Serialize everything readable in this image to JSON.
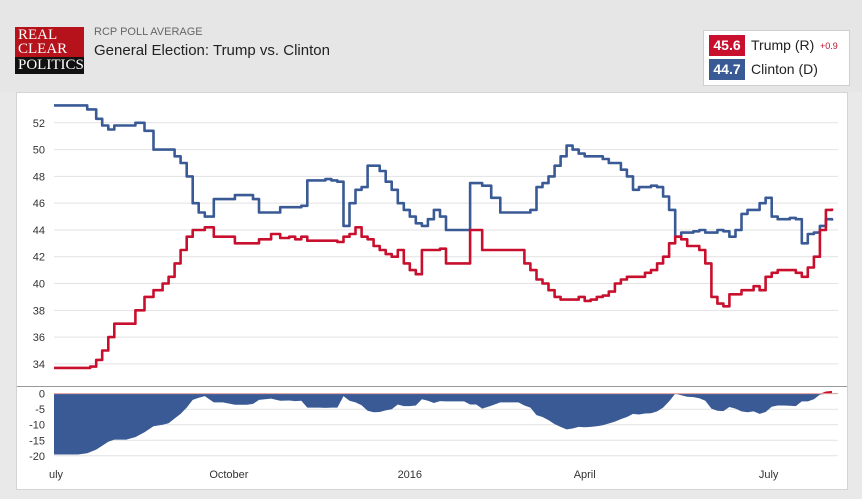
{
  "header": {
    "logo": {
      "line1": "REAL",
      "line2": "CLEAR",
      "line3": "POLITICS"
    },
    "kicker": "RCP POLL AVERAGE",
    "title": "General Election: Trump vs. Clinton"
  },
  "legend": {
    "trump": {
      "value": "45.6",
      "name": "Trump (R)",
      "change": "+0.9",
      "color": "#c8102e"
    },
    "clinton": {
      "value": "44.7",
      "name": "Clinton (D)",
      "color": "#3a5a96"
    }
  },
  "chart_data": {
    "type": "line",
    "ylim": [
      32.5,
      54
    ],
    "yticks": [
      34,
      36,
      38,
      40,
      42,
      44,
      46,
      48,
      50,
      52
    ],
    "spread_ylim": [
      -22,
      1.5
    ],
    "spread_yticks": [
      0,
      -5,
      -10,
      -15,
      -20
    ],
    "xlabels": [
      {
        "label": "uly",
        "x": 0
      },
      {
        "label": "October",
        "x": 58
      },
      {
        "label": "2016",
        "x": 118
      },
      {
        "label": "April",
        "x": 176
      },
      {
        "label": "July",
        "x": 237
      }
    ],
    "xrange": [
      0,
      260
    ],
    "series": [
      {
        "name": "Clinton (D)",
        "color": "#3a5a96",
        "x": [
          0,
          4,
          8,
          11,
          14,
          16,
          18,
          20,
          22,
          24,
          27,
          30,
          33,
          36,
          38,
          40,
          42,
          44,
          46,
          48,
          50,
          53,
          56,
          60,
          64,
          66,
          68,
          72,
          75,
          78,
          80,
          82,
          84,
          86,
          88,
          90,
          92,
          94,
          96,
          98,
          100,
          102,
          104,
          106,
          108,
          110,
          112,
          114,
          116,
          118,
          120,
          122,
          124,
          126,
          128,
          130,
          132,
          134,
          136,
          138,
          140,
          142,
          145,
          148,
          150,
          152,
          154,
          156,
          158,
          160,
          162,
          164,
          166,
          168,
          170,
          172,
          174,
          176,
          178,
          180,
          182,
          184,
          186,
          188,
          190,
          192,
          194,
          196,
          198,
          200,
          202,
          204,
          206,
          208,
          210,
          212,
          214,
          216,
          218,
          220,
          222,
          224,
          226,
          228,
          230,
          232,
          234,
          236,
          238,
          240,
          242,
          244,
          246,
          248,
          250,
          252,
          254,
          256,
          258
        ],
        "values": [
          53.3,
          53.3,
          53.3,
          53.0,
          52.3,
          51.8,
          51.5,
          51.8,
          51.8,
          51.8,
          52.0,
          51.4,
          50.0,
          50.0,
          50.0,
          49.5,
          49.0,
          48.0,
          46.0,
          45.3,
          45.0,
          46.3,
          46.3,
          46.6,
          46.6,
          46.3,
          45.3,
          45.3,
          45.7,
          45.7,
          45.7,
          45.8,
          47.7,
          47.7,
          47.7,
          47.8,
          47.7,
          47.6,
          44.3,
          46.0,
          47.0,
          47.2,
          48.8,
          48.8,
          48.4,
          47.6,
          47.0,
          46.0,
          45.5,
          45.0,
          44.5,
          44.3,
          44.8,
          45.5,
          45.0,
          44.0,
          44.0,
          44.0,
          44.0,
          47.5,
          47.5,
          47.3,
          46.4,
          45.3,
          45.3,
          45.3,
          45.3,
          45.3,
          45.5,
          47.2,
          47.5,
          48.0,
          48.8,
          49.5,
          50.3,
          50.0,
          49.7,
          49.5,
          49.5,
          49.5,
          49.3,
          49.0,
          49.0,
          48.5,
          48.0,
          47.0,
          47.2,
          47.2,
          47.3,
          47.2,
          46.5,
          45.5,
          43.5,
          43.8,
          43.8,
          43.9,
          44.0,
          43.8,
          43.8,
          44.0,
          43.9,
          43.5,
          44.0,
          45.2,
          45.5,
          45.5,
          46.0,
          46.4,
          45.0,
          44.8,
          44.8,
          44.9,
          44.8,
          43.0,
          43.7,
          43.8,
          44.3,
          44.8,
          44.7
        ]
      },
      {
        "name": "Trump (R)",
        "color": "#c8102e",
        "x": [
          0,
          4,
          8,
          12,
          14,
          16,
          18,
          20,
          22,
          24,
          27,
          30,
          33,
          36,
          38,
          40,
          42,
          44,
          46,
          48,
          50,
          53,
          56,
          60,
          64,
          66,
          68,
          72,
          75,
          78,
          80,
          82,
          84,
          86,
          88,
          90,
          92,
          94,
          96,
          98,
          100,
          102,
          104,
          106,
          108,
          110,
          112,
          114,
          116,
          118,
          120,
          122,
          124,
          126,
          128,
          130,
          132,
          134,
          136,
          138,
          140,
          142,
          145,
          148,
          150,
          152,
          154,
          156,
          158,
          160,
          162,
          164,
          166,
          168,
          170,
          172,
          174,
          176,
          178,
          180,
          182,
          184,
          186,
          188,
          190,
          192,
          194,
          196,
          198,
          200,
          202,
          204,
          206,
          208,
          210,
          212,
          214,
          216,
          218,
          220,
          222,
          224,
          226,
          228,
          230,
          232,
          234,
          236,
          238,
          240,
          242,
          244,
          246,
          248,
          250,
          252,
          254,
          256,
          258
        ],
        "values": [
          33.7,
          33.7,
          33.7,
          33.8,
          34.3,
          35.0,
          36.0,
          37.0,
          37.0,
          37.0,
          38.0,
          39.0,
          39.5,
          40.0,
          40.5,
          41.5,
          42.5,
          43.5,
          44.0,
          44.0,
          44.2,
          43.5,
          43.5,
          43.0,
          43.0,
          43.0,
          43.3,
          43.7,
          43.4,
          43.5,
          43.3,
          43.5,
          43.2,
          43.2,
          43.2,
          43.2,
          43.2,
          43.1,
          43.5,
          43.7,
          44.2,
          43.5,
          43.3,
          42.8,
          42.5,
          42.2,
          42.0,
          42.5,
          41.5,
          41.0,
          40.7,
          42.5,
          42.5,
          42.5,
          42.6,
          41.5,
          41.5,
          41.5,
          41.5,
          44.0,
          44.0,
          42.5,
          42.5,
          42.5,
          42.5,
          42.5,
          42.5,
          41.5,
          41.0,
          40.3,
          40.0,
          39.5,
          39.0,
          38.8,
          38.8,
          38.8,
          39.0,
          38.7,
          38.8,
          39.0,
          39.1,
          39.4,
          40.0,
          40.3,
          40.5,
          40.5,
          40.5,
          40.8,
          41.0,
          41.5,
          42.0,
          43.0,
          43.5,
          43.3,
          42.8,
          42.8,
          42.5,
          41.5,
          39.0,
          38.5,
          38.3,
          39.2,
          39.2,
          39.5,
          39.5,
          39.8,
          39.5,
          40.5,
          40.8,
          41.0,
          41.0,
          41.0,
          40.8,
          40.5,
          41.2,
          42.0,
          44.0,
          45.5,
          45.6
        ]
      }
    ]
  }
}
